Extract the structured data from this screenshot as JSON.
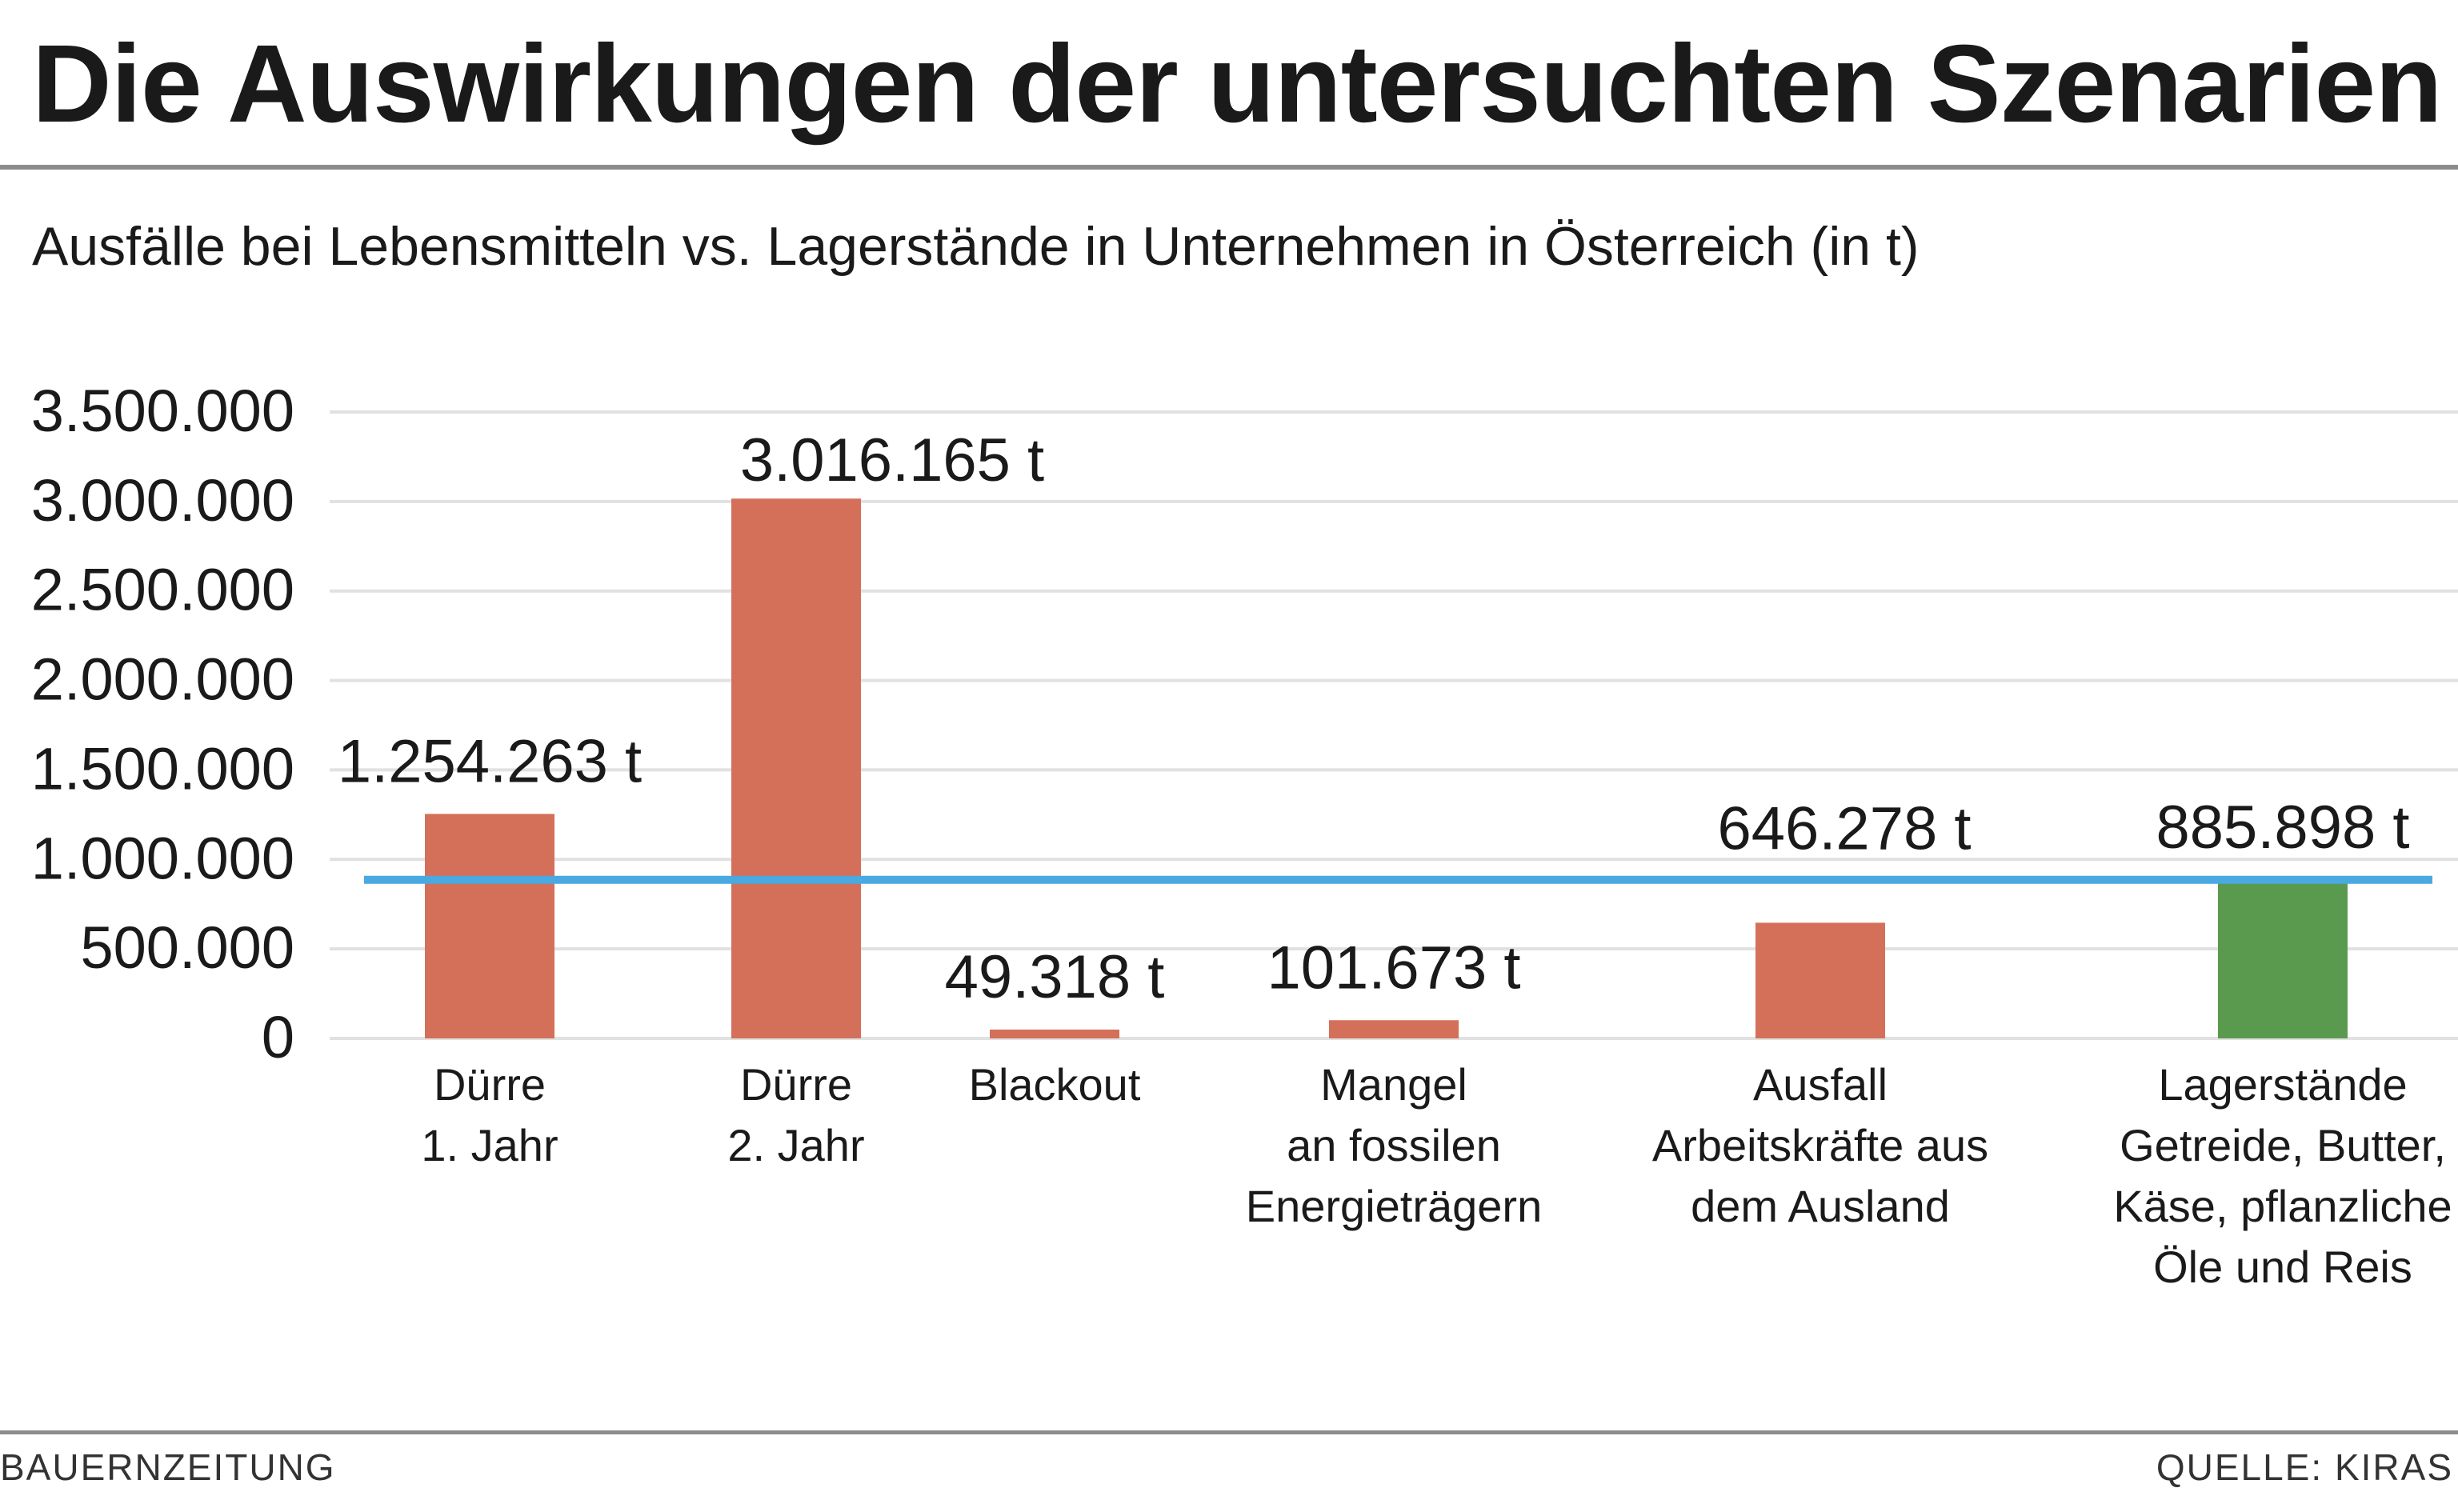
{
  "title": "Die Auswirkungen der untersuchten Szenarien",
  "subtitle": "Ausfälle bei Lebensmitteln vs. Lagerstände in Unternehmen in Österreich (in t)",
  "footer": {
    "left": "BAUERNZEITUNG",
    "right": "QUELLE: KIRAS"
  },
  "colors": {
    "loss": "#d4705a",
    "stock": "#5a9a4e",
    "reference_line": "#49a9e0",
    "grid": "#e1e1e1"
  },
  "chart_data": {
    "type": "bar",
    "title": "Die Auswirkungen der untersuchten Szenarien",
    "subtitle": "Ausfälle bei Lebensmitteln vs. Lagerstände in Unternehmen in Österreich (in t)",
    "xlabel": "",
    "ylabel": "",
    "ylim": [
      0,
      3500000
    ],
    "yticks": [
      0,
      500000,
      1000000,
      1500000,
      2000000,
      2500000,
      3000000,
      3500000
    ],
    "ytick_labels": [
      "0",
      "500.000",
      "1.000.000",
      "1.500.000",
      "2.000.000",
      "2.500.000",
      "3.000.000",
      "3.500.000"
    ],
    "grid": true,
    "legend": "none",
    "categories": [
      [
        "Dürre",
        "1. Jahr"
      ],
      [
        "Dürre",
        "2. Jahr"
      ],
      [
        "Blackout"
      ],
      [
        "Mangel",
        "an fossilen",
        "Energieträgern"
      ],
      [
        "Ausfall",
        "Arbeitskräfte aus",
        "dem Ausland"
      ],
      [
        "Lagerstände",
        "Getreide, Butter,",
        "Käse, pflanzliche",
        "Öle und Reis"
      ]
    ],
    "values": [
      1254263,
      3016165,
      49318,
      101673,
      646278,
      885898
    ],
    "value_labels": [
      "1.254.263 t",
      "3.016.165 t",
      "49.318 t",
      "101.673 t",
      "646.278 t",
      "885.898 t"
    ],
    "bar_kinds": [
      "loss",
      "loss",
      "loss",
      "loss",
      "loss",
      "stock"
    ],
    "reference_line": {
      "value": 885898
    }
  }
}
